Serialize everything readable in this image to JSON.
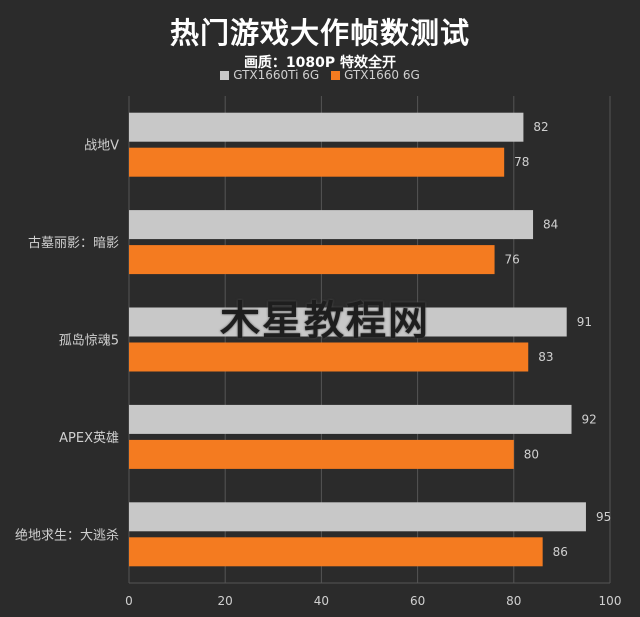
{
  "title": "热门游戏大作帧数测试",
  "subtitle": "画质：1080P 特效全开",
  "watermark": "木星教程网",
  "colors": {
    "background": "#2b2b2b",
    "gridline": "#555555",
    "text": "#d0d0d0"
  },
  "chart_data": {
    "type": "bar",
    "orientation": "horizontal",
    "categories": [
      "战地V",
      "古墓丽影：暗影",
      "孤岛惊魂5",
      "APEX英雄",
      "绝地求生：大逃杀"
    ],
    "series": [
      {
        "name": "GTX1660Ti 6G",
        "color": "#c8c8c8",
        "values": [
          82,
          84,
          91,
          92,
          95
        ]
      },
      {
        "name": "GTX1660 6G",
        "color": "#f47b20",
        "values": [
          78,
          76,
          83,
          80,
          86
        ]
      }
    ],
    "xlim": [
      0,
      100
    ],
    "xticks": [
      0,
      20,
      40,
      60,
      80,
      100
    ],
    "grid": true,
    "legend_position": "top",
    "data_labels": true
  }
}
